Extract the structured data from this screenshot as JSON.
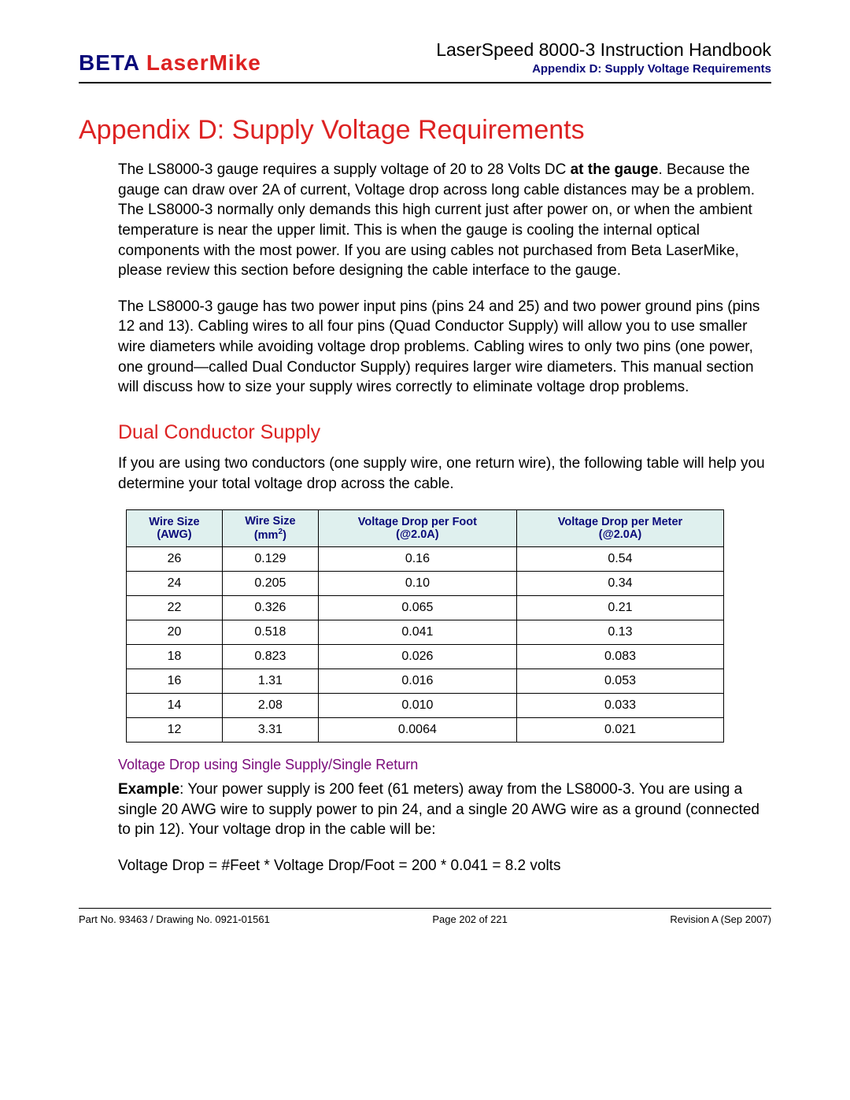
{
  "header": {
    "logo_beta": "BETA",
    "logo_lasermike": "LaserMike",
    "doc_title": "LaserSpeed 8000-3 Instruction Handbook",
    "appendix_line": "Appendix D: Supply Voltage Requirements"
  },
  "main": {
    "title": "Appendix D: Supply Voltage Requirements",
    "para1_a": "The LS8000-3 gauge requires a supply voltage of 20 to 28 Volts DC ",
    "para1_bold": "at the gauge",
    "para1_b": ". Because the gauge can draw over 2A of current, Voltage drop across long cable distances may be a problem. The LS8000-3 normally only demands this high current just after power on, or when the ambient temperature is near the upper limit. This is when the gauge is cooling the internal optical components with the most power. If you are using cables not purchased from Beta LaserMike, please review this section before designing the cable interface to the gauge.",
    "para2": "The LS8000-3 gauge has two power input pins (pins 24 and 25) and two power ground pins (pins 12 and 13). Cabling wires to all four pins (Quad Conductor Supply) will allow you to use smaller wire diameters while avoiding voltage drop problems. Cabling wires to only two pins (one power, one ground—called Dual Conductor Supply) requires larger wire diameters. This manual section will discuss how to size your supply wires correctly to eliminate voltage drop problems.",
    "section_title": "Dual Conductor Supply",
    "para3": "If you are using two conductors (one supply wire, one return wire), the following table will help you determine your total voltage drop across the cable.",
    "table": {
      "col1_l1": "Wire Size",
      "col1_l2": "(AWG)",
      "col2_l1": "Wire Size",
      "col2_l2a": "(mm",
      "col2_l2b": ")",
      "col3_l1": "Voltage Drop per Foot",
      "col3_l2": "(@2.0A)",
      "col4_l1": "Voltage Drop per Meter",
      "col4_l2": "(@2.0A)",
      "rows": [
        [
          "26",
          "0.129",
          "0.16",
          "0.54"
        ],
        [
          "24",
          "0.205",
          "0.10",
          "0.34"
        ],
        [
          "22",
          "0.326",
          "0.065",
          "0.21"
        ],
        [
          "20",
          "0.518",
          "0.041",
          "0.13"
        ],
        [
          "18",
          "0.823",
          "0.026",
          "0.083"
        ],
        [
          "16",
          "1.31",
          "0.016",
          "0.053"
        ],
        [
          "14",
          "2.08",
          "0.010",
          "0.033"
        ],
        [
          "12",
          "3.31",
          "0.0064",
          "0.021"
        ]
      ]
    },
    "sub_caption": "Voltage Drop using Single Supply/Single Return",
    "example_bold": "Example",
    "example_text": ": Your power supply is 200 feet (61 meters) away from the LS8000-3. You are using a single 20 AWG wire to supply power to pin 24, and a single 20 AWG wire as a ground (connected to pin 12). Your voltage drop in the cable will be:",
    "formula": "Voltage Drop = #Feet * Voltage Drop/Foot = 200 * 0.041 = 8.2 volts"
  },
  "footer": {
    "left": "Part No. 93463 / Drawing No. 0921-01561",
    "center": "Page 202 of 221",
    "right": "Revision A (Sep 2007)"
  }
}
